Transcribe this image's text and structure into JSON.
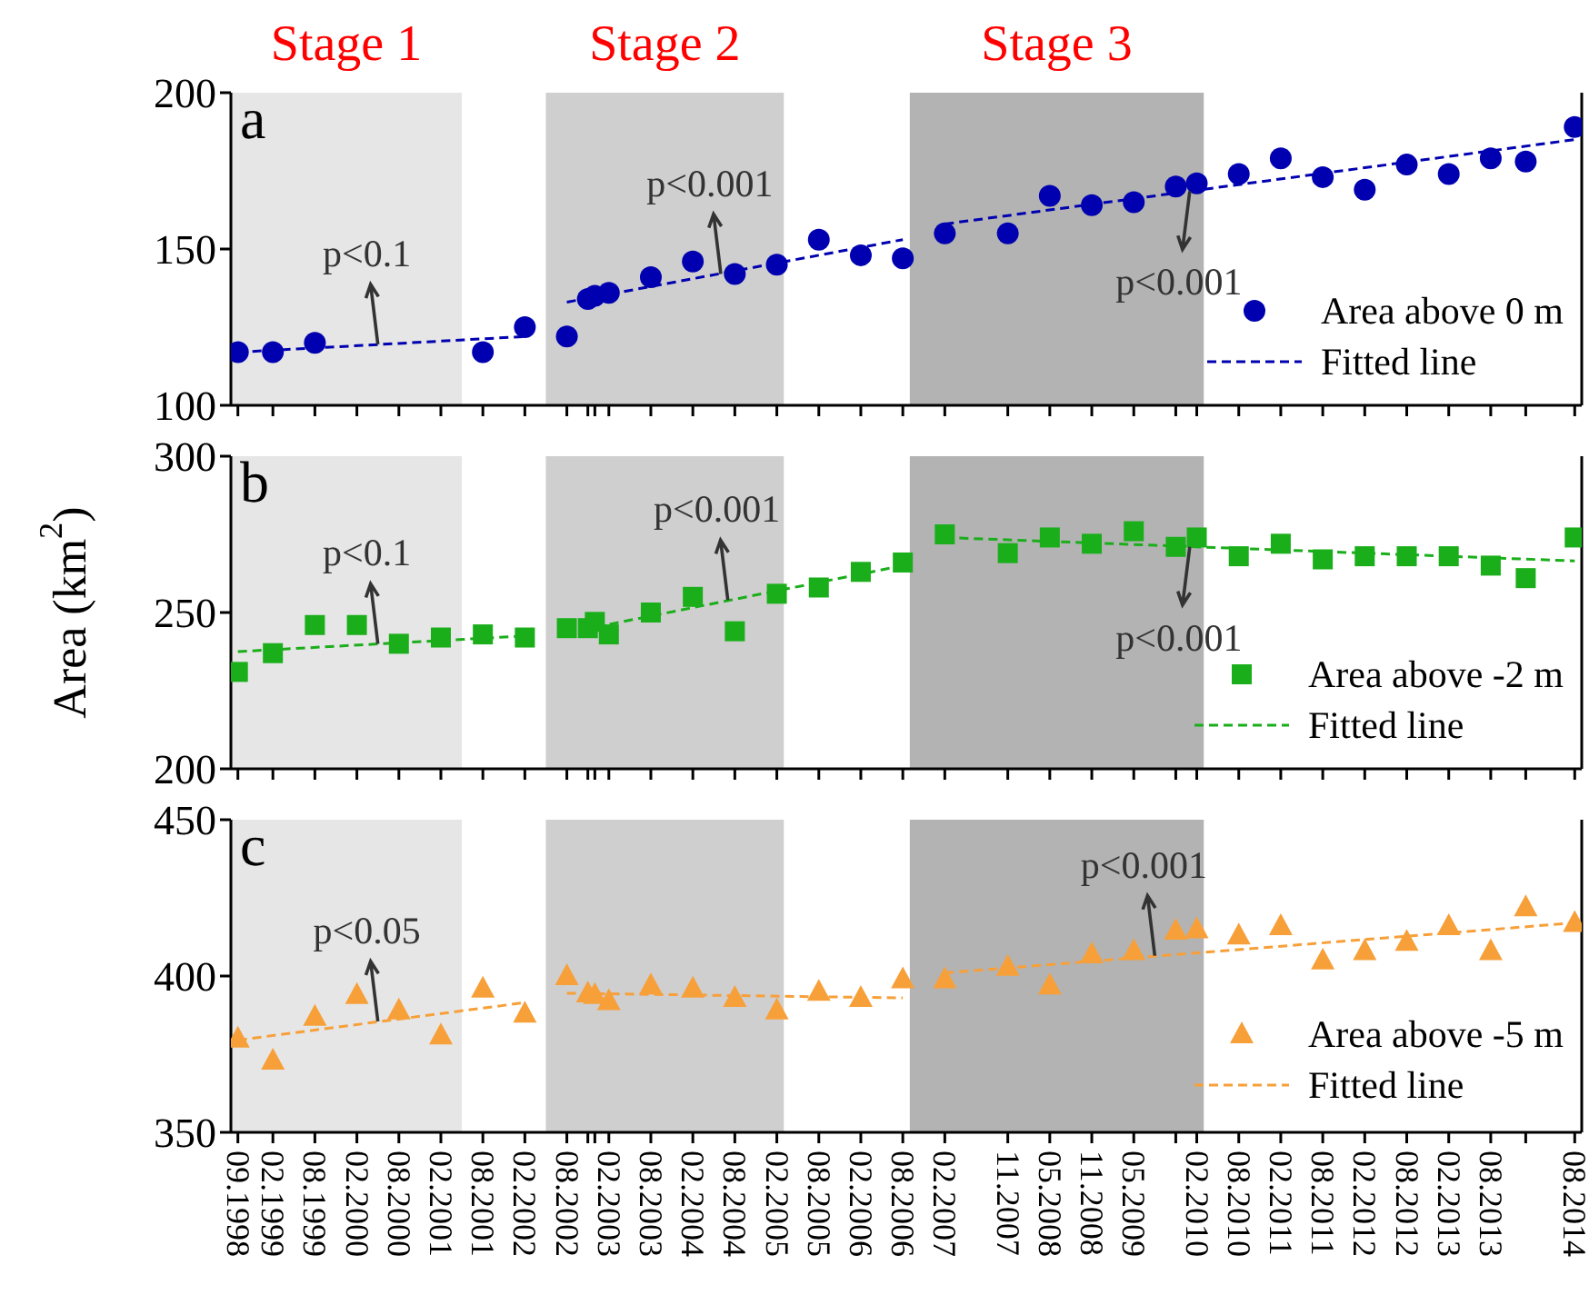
{
  "chart_data": [
    {
      "type": "scatter",
      "xlim": [
        "1998-08",
        "2014-09"
      ],
      "ylim": [
        100,
        200
      ],
      "yticks": [
        100,
        150,
        200
      ],
      "tick_labels": "y",
      "legend": "bottom right",
      "xticks": [
        {
          "value": "1998-09",
          "label": null
        },
        {
          "value": "1999-02",
          "label": null
        },
        {
          "value": "1999-08",
          "label": null
        },
        {
          "value": "2000-02",
          "label": null
        },
        {
          "value": "2000-08",
          "label": null
        },
        {
          "value": "2001-02",
          "label": null
        },
        {
          "value": "2001-08",
          "label": null
        },
        {
          "value": "2002-02",
          "label": null
        },
        {
          "value": "2002-08",
          "label": null
        },
        {
          "value": "2002-11",
          "label": null
        },
        {
          "value": "2002-12",
          "label": null
        },
        {
          "value": "2003-02",
          "label": null
        },
        {
          "value": "2003-08",
          "label": null
        },
        {
          "value": "2004-02",
          "label": null
        },
        {
          "value": "2004-08",
          "label": null
        },
        {
          "value": "2005-02",
          "label": null
        },
        {
          "value": "2005-08",
          "label": null
        },
        {
          "value": "2006-02",
          "label": null
        },
        {
          "value": "2006-08",
          "label": null
        },
        {
          "value": "2007-02",
          "label": null
        },
        {
          "value": "2007-11",
          "label": null
        },
        {
          "value": "2008-05",
          "label": null
        },
        {
          "value": "2008-11",
          "label": null
        },
        {
          "value": "2009-05",
          "label": null
        },
        {
          "value": "2009-11",
          "label": null
        },
        {
          "value": "2010-02",
          "label": null
        },
        {
          "value": "2010-08",
          "label": null
        },
        {
          "value": "2011-02",
          "label": null
        },
        {
          "value": "2011-08",
          "label": null
        },
        {
          "value": "2012-02",
          "label": null
        },
        {
          "value": "2012-08",
          "label": null
        },
        {
          "value": "2013-02",
          "label": null
        },
        {
          "value": "2013-08",
          "label": null
        },
        {
          "value": "2014-01",
          "label": null
        },
        {
          "value": "2014-08",
          "label": null
        }
      ],
      "bands": [
        {
          "axis": "x",
          "from": "1998-08",
          "to": "2001-05",
          "label": "Stage 1",
          "color": "#e6e6e6"
        },
        {
          "axis": "x",
          "from": "2002-05",
          "to": "2005-03",
          "label": "Stage 2",
          "color": "#cfcfcf"
        },
        {
          "axis": "x",
          "from": "2006-09",
          "to": "2010-03",
          "label": "Stage 3",
          "color": "#b3b3b3"
        }
      ],
      "annotations": [
        "a",
        {
          "text": "p<0.1",
          "x": "2000-05",
          "y": 119.5
        },
        {
          "text": "p<0.001",
          "x": "2004-06",
          "y": 142
        },
        {
          "text": "p<0.001",
          "x": "2010-01",
          "y": 168.5
        }
      ],
      "series": [
        {
          "name": "Area above 0 m",
          "marker": "circle",
          "color": "#0000b0",
          "x": [
            "1998-09",
            "1999-02",
            "1999-08",
            "2001-08",
            "2002-02",
            "2002-08",
            "2002-11",
            "2002-12",
            "2003-02",
            "2003-08",
            "2004-02",
            "2004-08",
            "2005-02",
            "2005-08",
            "2006-02",
            "2006-08",
            "2007-02",
            "2007-11",
            "2008-05",
            "2008-11",
            "2009-05",
            "2009-11",
            "2010-02",
            "2010-08",
            "2011-02",
            "2011-08",
            "2012-02",
            "2012-08",
            "2013-02",
            "2013-08",
            "2014-01",
            "2014-08"
          ],
          "values": [
            117,
            117,
            120,
            117,
            125,
            122,
            134,
            135,
            136,
            141,
            146,
            142,
            145,
            153,
            148,
            147,
            155,
            155,
            167,
            164,
            165,
            170,
            171,
            174,
            179,
            173,
            169,
            177,
            174,
            179,
            178,
            189
          ]
        },
        {
          "name": "Fitted line",
          "type": "line",
          "line_style": "dashed",
          "color": "#0000b0",
          "x": [
            "1998-09",
            "2002-02",
            "2002-05",
            "2002-08",
            "2006-08",
            "2006-11",
            "2007-02",
            "2014-08"
          ],
          "values": [
            117,
            122,
            null,
            133,
            153,
            null,
            158,
            185
          ]
        }
      ]
    },
    {
      "type": "scatter",
      "xlim": [
        "1998-08",
        "2014-09"
      ],
      "ylim": [
        200,
        300
      ],
      "yticks": [
        200,
        250,
        300
      ],
      "tick_labels": "y",
      "legend": "bottom right",
      "ylabel": "Area (km$^{2}$)",
      "xticks": [
        {
          "value": "1998-09",
          "label": null
        },
        {
          "value": "1999-02",
          "label": null
        },
        {
          "value": "1999-08",
          "label": null
        },
        {
          "value": "2000-02",
          "label": null
        },
        {
          "value": "2000-08",
          "label": null
        },
        {
          "value": "2001-02",
          "label": null
        },
        {
          "value": "2001-08",
          "label": null
        },
        {
          "value": "2002-02",
          "label": null
        },
        {
          "value": "2002-08",
          "label": null
        },
        {
          "value": "2002-11",
          "label": null
        },
        {
          "value": "2002-12",
          "label": null
        },
        {
          "value": "2003-02",
          "label": null
        },
        {
          "value": "2003-08",
          "label": null
        },
        {
          "value": "2004-02",
          "label": null
        },
        {
          "value": "2004-08",
          "label": null
        },
        {
          "value": "2005-02",
          "label": null
        },
        {
          "value": "2005-08",
          "label": null
        },
        {
          "value": "2006-02",
          "label": null
        },
        {
          "value": "2006-08",
          "label": null
        },
        {
          "value": "2007-02",
          "label": null
        },
        {
          "value": "2007-11",
          "label": null
        },
        {
          "value": "2008-05",
          "label": null
        },
        {
          "value": "2008-11",
          "label": null
        },
        {
          "value": "2009-05",
          "label": null
        },
        {
          "value": "2009-11",
          "label": null
        },
        {
          "value": "2010-02",
          "label": null
        },
        {
          "value": "2010-08",
          "label": null
        },
        {
          "value": "2011-02",
          "label": null
        },
        {
          "value": "2011-08",
          "label": null
        },
        {
          "value": "2012-02",
          "label": null
        },
        {
          "value": "2012-08",
          "label": null
        },
        {
          "value": "2013-02",
          "label": null
        },
        {
          "value": "2013-08",
          "label": null
        },
        {
          "value": "2014-01",
          "label": null
        },
        {
          "value": "2014-08",
          "label": null
        }
      ],
      "bands": [
        {
          "axis": "x",
          "from": "1998-08",
          "to": "2001-05",
          "color": "#e6e6e6"
        },
        {
          "axis": "x",
          "from": "2002-05",
          "to": "2005-03",
          "color": "#cfcfcf"
        },
        {
          "axis": "x",
          "from": "2006-09",
          "to": "2010-03",
          "color": "#b3b3b3"
        }
      ],
      "annotations": [
        "b",
        {
          "text": "p<0.1",
          "x": "2000-05",
          "y": 240
        },
        {
          "text": "p<0.001",
          "x": "2004-07",
          "y": 254
        },
        {
          "text": "p<0.001",
          "x": "2010-01",
          "y": 271
        }
      ],
      "series": [
        {
          "name": "Area above -2 m",
          "marker": "square",
          "color": "#1aae1a",
          "x": [
            "1998-09",
            "1999-02",
            "1999-08",
            "2000-02",
            "2000-08",
            "2001-02",
            "2001-08",
            "2002-02",
            "2002-08",
            "2002-11",
            "2002-12",
            "2003-02",
            "2003-08",
            "2004-02",
            "2004-08",
            "2005-02",
            "2005-08",
            "2006-02",
            "2006-08",
            "2007-02",
            "2007-11",
            "2008-05",
            "2008-11",
            "2009-05",
            "2009-11",
            "2010-02",
            "2010-08",
            "2011-02",
            "2011-08",
            "2012-02",
            "2012-08",
            "2013-02",
            "2013-08",
            "2014-01",
            "2014-08"
          ],
          "values": [
            231,
            237,
            246,
            246,
            240,
            242,
            243,
            242,
            245,
            245,
            247,
            243,
            250,
            255,
            244,
            256,
            258,
            263,
            266,
            275,
            269,
            274,
            272,
            276,
            271,
            274,
            268,
            272,
            267,
            268,
            268,
            268,
            265,
            261,
            274
          ]
        },
        {
          "name": "Fitted line",
          "type": "line",
          "line_style": "dashed",
          "color": "#1aae1a",
          "x": [
            "1998-09",
            "2002-02",
            "2002-05",
            "2002-08",
            "2006-08",
            "2006-11",
            "2007-02",
            "2014-08"
          ],
          "values": [
            237.5,
            242.5,
            null,
            243.5,
            265,
            null,
            274,
            266.5
          ]
        }
      ]
    },
    {
      "type": "scatter",
      "xlim": [
        "1998-08",
        "2014-09"
      ],
      "ylim": [
        350,
        450
      ],
      "yticks": [
        350,
        400,
        450
      ],
      "legend": "bottom right",
      "xticks": [
        {
          "value": "1998-09",
          "label": "09.1998"
        },
        {
          "value": "1999-02",
          "label": "02.1999"
        },
        {
          "value": "1999-08",
          "label": "08.1999"
        },
        {
          "value": "2000-02",
          "label": "02.2000"
        },
        {
          "value": "2000-08",
          "label": "08.2000"
        },
        {
          "value": "2001-02",
          "label": "02.2001"
        },
        {
          "value": "2001-08",
          "label": "08.2001"
        },
        {
          "value": "2002-02",
          "label": "02.2002"
        },
        {
          "value": "2002-08",
          "label": "08.2002"
        },
        {
          "value": "2002-11",
          "label": null
        },
        {
          "value": "2002-12",
          "label": null
        },
        {
          "value": "2003-02",
          "label": "02.2003"
        },
        {
          "value": "2003-08",
          "label": "08.2003"
        },
        {
          "value": "2004-02",
          "label": "02.2004"
        },
        {
          "value": "2004-08",
          "label": "08.2004"
        },
        {
          "value": "2005-02",
          "label": "02.2005"
        },
        {
          "value": "2005-08",
          "label": "08.2005"
        },
        {
          "value": "2006-02",
          "label": "02.2006"
        },
        {
          "value": "2006-08",
          "label": "08.2006"
        },
        {
          "value": "2007-02",
          "label": "02.2007"
        },
        {
          "value": "2007-11",
          "label": "11.2007"
        },
        {
          "value": "2008-05",
          "label": "05.2008"
        },
        {
          "value": "2008-11",
          "label": "11.2008"
        },
        {
          "value": "2009-05",
          "label": "05.2009"
        },
        {
          "value": "2009-11",
          "label": null
        },
        {
          "value": "2010-02",
          "label": "02.2010"
        },
        {
          "value": "2010-08",
          "label": "08.2010"
        },
        {
          "value": "2011-02",
          "label": "02.2011"
        },
        {
          "value": "2011-08",
          "label": "08.2011"
        },
        {
          "value": "2012-02",
          "label": "02.2012"
        },
        {
          "value": "2012-08",
          "label": "08.2012"
        },
        {
          "value": "2013-02",
          "label": "02.2013"
        },
        {
          "value": "2013-08",
          "label": "08.2013"
        },
        {
          "value": "2014-01",
          "label": null
        },
        {
          "value": "2014-08",
          "label": "08.2014"
        }
      ],
      "bands": [
        {
          "axis": "x",
          "from": "1998-08",
          "to": "2001-05",
          "color": "#e6e6e6"
        },
        {
          "axis": "x",
          "from": "2002-05",
          "to": "2005-03",
          "color": "#cfcfcf"
        },
        {
          "axis": "x",
          "from": "2006-09",
          "to": "2010-03",
          "color": "#b3b3b3"
        }
      ],
      "annotations": [
        "c",
        {
          "text": "p<0.05",
          "x": "2000-05",
          "y": 385.5
        },
        {
          "text": "p<0.001",
          "x": "2009-08",
          "y": 406.5
        }
      ],
      "series": [
        {
          "name": "Area above -5 m",
          "marker": "triangle",
          "color": "#f7a03a",
          "x": [
            "1998-09",
            "1999-02",
            "1999-08",
            "2000-02",
            "2000-08",
            "2001-02",
            "2001-08",
            "2002-02",
            "2002-08",
            "2002-11",
            "2002-12",
            "2003-02",
            "2003-08",
            "2004-02",
            "2004-08",
            "2005-02",
            "2005-08",
            "2006-02",
            "2006-08",
            "2007-02",
            "2007-11",
            "2008-05",
            "2008-11",
            "2009-05",
            "2009-11",
            "2010-02",
            "2010-08",
            "2011-02",
            "2011-08",
            "2012-02",
            "2012-08",
            "2013-02",
            "2013-08",
            "2014-01",
            "2014-08"
          ],
          "values": [
            380,
            373,
            387,
            394,
            389,
            381,
            396,
            388,
            400,
            394.5,
            394,
            392,
            397,
            396,
            393,
            389,
            395,
            393,
            399,
            399,
            403,
            397,
            407,
            408,
            414.5,
            415,
            413,
            416,
            405,
            408,
            411,
            416,
            408,
            422,
            417
          ]
        },
        {
          "name": "Fitted line",
          "type": "line",
          "line_style": "dashed",
          "color": "#f7a03a",
          "x": [
            "1998-09",
            "2002-02",
            "2002-05",
            "2002-08",
            "2006-08",
            "2006-11",
            "2007-02",
            "2014-08"
          ],
          "values": [
            379.5,
            391.5,
            null,
            394.5,
            393,
            null,
            401,
            417
          ]
        }
      ]
    }
  ]
}
